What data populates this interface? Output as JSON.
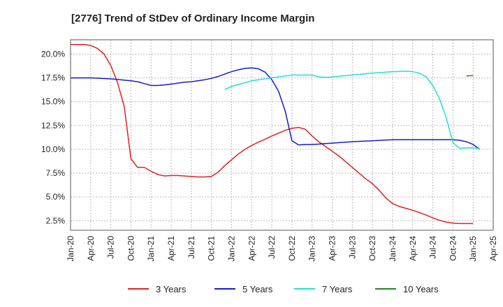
{
  "chart_data": {
    "type": "line",
    "title": "[2776]  Trend of StDev of Ordinary Income Margin",
    "xlabel": "",
    "ylabel": "",
    "x_ticks": [
      "Jan-20",
      "Apr-20",
      "Jul-20",
      "Oct-20",
      "Jan-21",
      "Apr-21",
      "Jul-21",
      "Oct-21",
      "Jan-22",
      "Apr-22",
      "Jul-22",
      "Oct-22",
      "Jan-23",
      "Apr-23",
      "Jul-23",
      "Oct-23",
      "Jan-24",
      "Apr-24",
      "Jul-24",
      "Oct-24",
      "Jan-25",
      "Apr-25"
    ],
    "y_ticks": [
      "2.5%",
      "5.0%",
      "7.5%",
      "10.0%",
      "12.5%",
      "15.0%",
      "17.5%",
      "20.0%"
    ],
    "y_tick_values": [
      2.5,
      5.0,
      7.5,
      10.0,
      12.5,
      15.0,
      17.5,
      20.0
    ],
    "ylim": [
      1.5,
      21.5
    ],
    "xlim": [
      "Jan-20",
      "Apr-25"
    ],
    "grid": true,
    "legend_position": "bottom",
    "series": [
      {
        "name": "3 Years",
        "color": "#dd2222",
        "points": [
          [
            "Jan-20",
            21.0
          ],
          [
            "Feb-20",
            21.0
          ],
          [
            "Mar-20",
            21.0
          ],
          [
            "Apr-20",
            20.9
          ],
          [
            "May-20",
            20.6
          ],
          [
            "Jun-20",
            20.0
          ],
          [
            "Jul-20",
            18.8
          ],
          [
            "Aug-20",
            17.0
          ],
          [
            "Sep-20",
            14.5
          ],
          [
            "Oct-20",
            9.0
          ],
          [
            "Nov-20",
            8.1
          ],
          [
            "Dec-20",
            8.1
          ],
          [
            "Jan-21",
            7.7
          ],
          [
            "Feb-21",
            7.35
          ],
          [
            "Mar-21",
            7.2
          ],
          [
            "Apr-21",
            7.25
          ],
          [
            "May-21",
            7.25
          ],
          [
            "Jun-21",
            7.2
          ],
          [
            "Jul-21",
            7.15
          ],
          [
            "Aug-21",
            7.1
          ],
          [
            "Sep-21",
            7.1
          ],
          [
            "Oct-21",
            7.15
          ],
          [
            "Nov-21",
            7.6
          ],
          [
            "Dec-21",
            8.3
          ],
          [
            "Jan-22",
            8.9
          ],
          [
            "Feb-22",
            9.5
          ],
          [
            "Mar-22",
            10.0
          ],
          [
            "Apr-22",
            10.4
          ],
          [
            "May-22",
            10.75
          ],
          [
            "Jun-22",
            11.05
          ],
          [
            "Jul-22",
            11.4
          ],
          [
            "Aug-22",
            11.7
          ],
          [
            "Sep-22",
            12.0
          ],
          [
            "Oct-22",
            12.2
          ],
          [
            "Nov-22",
            12.3
          ],
          [
            "Dec-22",
            12.1
          ],
          [
            "Jan-23",
            11.4
          ],
          [
            "Feb-23",
            10.8
          ],
          [
            "Mar-23",
            10.3
          ],
          [
            "Apr-23",
            9.8
          ],
          [
            "May-23",
            9.3
          ],
          [
            "Jun-23",
            8.7
          ],
          [
            "Jul-23",
            8.1
          ],
          [
            "Aug-23",
            7.5
          ],
          [
            "Sep-23",
            6.9
          ],
          [
            "Oct-23",
            6.4
          ],
          [
            "Nov-23",
            5.7
          ],
          [
            "Dec-23",
            4.9
          ],
          [
            "Jan-24",
            4.3
          ],
          [
            "Feb-24",
            4.0
          ],
          [
            "Mar-24",
            3.8
          ],
          [
            "Apr-24",
            3.6
          ],
          [
            "May-24",
            3.35
          ],
          [
            "Jun-24",
            3.1
          ],
          [
            "Jul-24",
            2.8
          ],
          [
            "Aug-24",
            2.55
          ],
          [
            "Sep-24",
            2.35
          ],
          [
            "Oct-24",
            2.25
          ],
          [
            "Nov-24",
            2.2
          ],
          [
            "Dec-24",
            2.2
          ],
          [
            "Jan-25",
            2.2
          ]
        ]
      },
      {
        "name": "5 Years",
        "color": "#1a1acc",
        "points": [
          [
            "Jan-20",
            17.5
          ],
          [
            "Apr-20",
            17.5
          ],
          [
            "Jul-20",
            17.4
          ],
          [
            "Oct-20",
            17.2
          ],
          [
            "Nov-20",
            17.1
          ],
          [
            "Dec-20",
            16.9
          ],
          [
            "Jan-21",
            16.7
          ],
          [
            "Feb-21",
            16.7
          ],
          [
            "Mar-21",
            16.75
          ],
          [
            "Apr-21",
            16.85
          ],
          [
            "May-21",
            16.95
          ],
          [
            "Jun-21",
            17.05
          ],
          [
            "Jul-21",
            17.1
          ],
          [
            "Aug-21",
            17.2
          ],
          [
            "Sep-21",
            17.3
          ],
          [
            "Oct-21",
            17.45
          ],
          [
            "Nov-21",
            17.65
          ],
          [
            "Dec-21",
            17.9
          ],
          [
            "Jan-22",
            18.15
          ],
          [
            "Feb-22",
            18.35
          ],
          [
            "Mar-22",
            18.5
          ],
          [
            "Apr-22",
            18.55
          ],
          [
            "May-22",
            18.45
          ],
          [
            "Jun-22",
            18.1
          ],
          [
            "Jul-22",
            17.3
          ],
          [
            "Aug-22",
            16.1
          ],
          [
            "Sep-22",
            14.0
          ],
          [
            "Oct-22",
            10.9
          ],
          [
            "Nov-22",
            10.45
          ],
          [
            "Dec-22",
            10.5
          ],
          [
            "Jan-23",
            10.5
          ],
          [
            "Feb-23",
            10.55
          ],
          [
            "Mar-23",
            10.6
          ],
          [
            "Apr-23",
            10.65
          ],
          [
            "Jul-23",
            10.8
          ],
          [
            "Oct-23",
            10.9
          ],
          [
            "Jan-24",
            11.0
          ],
          [
            "Apr-24",
            11.0
          ],
          [
            "Jul-24",
            11.0
          ],
          [
            "Oct-24",
            11.0
          ],
          [
            "Nov-24",
            10.95
          ],
          [
            "Dec-24",
            10.8
          ],
          [
            "Jan-25",
            10.5
          ],
          [
            "Feb-25",
            10.0
          ]
        ]
      },
      {
        "name": "7 Years",
        "color": "#22dddd",
        "points": [
          [
            "Dec-21",
            16.3
          ],
          [
            "Jan-22",
            16.6
          ],
          [
            "Apr-22",
            17.2
          ],
          [
            "Jul-22",
            17.5
          ],
          [
            "Oct-22",
            17.8
          ],
          [
            "Jan-23",
            17.8
          ],
          [
            "Feb-23",
            17.6
          ],
          [
            "Mar-23",
            17.55
          ],
          [
            "Apr-23",
            17.6
          ],
          [
            "Jul-23",
            17.8
          ],
          [
            "Oct-23",
            18.0
          ],
          [
            "Jan-24",
            18.15
          ],
          [
            "Mar-24",
            18.2
          ],
          [
            "Apr-24",
            18.15
          ],
          [
            "May-24",
            18.0
          ],
          [
            "Jun-24",
            17.6
          ],
          [
            "Jul-24",
            16.7
          ],
          [
            "Aug-24",
            15.3
          ],
          [
            "Sep-24",
            13.3
          ],
          [
            "Oct-24",
            10.7
          ],
          [
            "Nov-24",
            10.1
          ],
          [
            "Dec-24",
            10.15
          ],
          [
            "Jan-25",
            10.15
          ],
          [
            "Feb-25",
            10.05
          ]
        ]
      },
      {
        "name": "10 Years",
        "color": "#228822",
        "points": [
          [
            "Dec-24",
            17.7
          ],
          [
            "Jan-25",
            17.75
          ]
        ]
      }
    ]
  }
}
